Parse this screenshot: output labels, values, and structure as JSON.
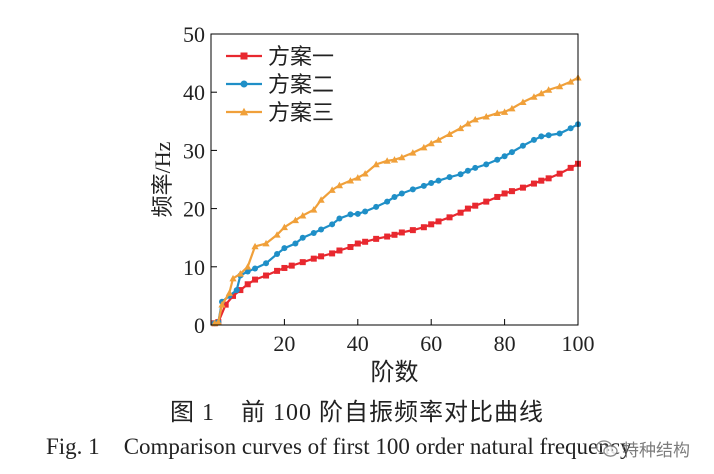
{
  "chart_data": {
    "type": "line",
    "title": "",
    "xlabel": "阶数",
    "ylabel": "频率/Hz",
    "xlim": [
      0,
      100
    ],
    "ylim": [
      0,
      50
    ],
    "xticks": [
      20,
      40,
      60,
      80,
      100
    ],
    "yticks": [
      0,
      10,
      20,
      30,
      40,
      50
    ],
    "legend_position": "top-left",
    "series": [
      {
        "name": "方案一",
        "color": "#e8282f",
        "marker": "square",
        "x": [
          1,
          2,
          4,
          6,
          8,
          10,
          12,
          15,
          18,
          20,
          22,
          25,
          28,
          30,
          33,
          35,
          38,
          40,
          42,
          45,
          48,
          50,
          52,
          55,
          58,
          60,
          62,
          65,
          68,
          70,
          72,
          75,
          78,
          80,
          82,
          85,
          88,
          90,
          92,
          95,
          98,
          100
        ],
        "values": [
          0.3,
          0.5,
          3.5,
          5.0,
          6.0,
          7.0,
          7.8,
          8.5,
          9.3,
          9.8,
          10.2,
          10.8,
          11.4,
          11.8,
          12.3,
          12.8,
          13.4,
          14.0,
          14.3,
          14.8,
          15.2,
          15.5,
          15.9,
          16.3,
          16.8,
          17.3,
          17.8,
          18.5,
          19.3,
          20.0,
          20.5,
          21.2,
          22.0,
          22.6,
          23.0,
          23.6,
          24.3,
          24.8,
          25.2,
          26.0,
          27.0,
          27.7
        ]
      },
      {
        "name": "方案二",
        "color": "#1f8fc7",
        "marker": "circle",
        "x": [
          1,
          2,
          3,
          5,
          7,
          8,
          10,
          12,
          15,
          18,
          20,
          23,
          25,
          28,
          30,
          33,
          35,
          38,
          40,
          42,
          45,
          48,
          50,
          52,
          55,
          58,
          60,
          62,
          65,
          68,
          70,
          72,
          75,
          78,
          80,
          82,
          85,
          88,
          90,
          92,
          95,
          98,
          100
        ],
        "values": [
          0.3,
          0.5,
          4.0,
          5.0,
          6.0,
          8.5,
          9.2,
          9.7,
          10.6,
          12.2,
          13.2,
          14.0,
          15.0,
          15.8,
          16.4,
          17.3,
          18.3,
          19.0,
          19.1,
          19.5,
          20.3,
          21.2,
          22.0,
          22.6,
          23.3,
          23.9,
          24.4,
          24.8,
          25.4,
          25.9,
          26.5,
          27.0,
          27.6,
          28.4,
          29.0,
          29.7,
          30.8,
          31.8,
          32.4,
          32.6,
          32.9,
          33.8,
          34.5
        ]
      },
      {
        "name": "方案三",
        "color": "#f0a03a",
        "marker": "triangle",
        "x": [
          1,
          2,
          3,
          5,
          6,
          8,
          10,
          12,
          15,
          18,
          20,
          23,
          25,
          28,
          30,
          33,
          35,
          38,
          40,
          42,
          45,
          48,
          50,
          52,
          55,
          58,
          60,
          62,
          65,
          68,
          70,
          72,
          75,
          78,
          80,
          82,
          85,
          88,
          90,
          92,
          95,
          98,
          100
        ],
        "values": [
          0.3,
          0.5,
          3.5,
          5.5,
          8.0,
          8.8,
          10.0,
          13.5,
          14.0,
          15.5,
          16.8,
          18.0,
          18.8,
          19.8,
          21.5,
          23.2,
          24.0,
          24.8,
          25.3,
          26.0,
          27.6,
          28.2,
          28.4,
          28.8,
          29.6,
          30.5,
          31.2,
          31.8,
          32.8,
          33.8,
          34.6,
          35.3,
          35.8,
          36.4,
          36.6,
          37.2,
          38.3,
          39.2,
          39.8,
          40.4,
          41.0,
          41.8,
          42.5
        ]
      }
    ]
  },
  "caption": {
    "cn_number": "图 1",
    "cn_text": "前 100 阶自振频率对比曲线",
    "en_number": "Fig. 1",
    "en_text": "Comparison curves of first 100 order natural frequency"
  },
  "watermark": {
    "text": "特种结构",
    "icon": "wechat-icon"
  }
}
